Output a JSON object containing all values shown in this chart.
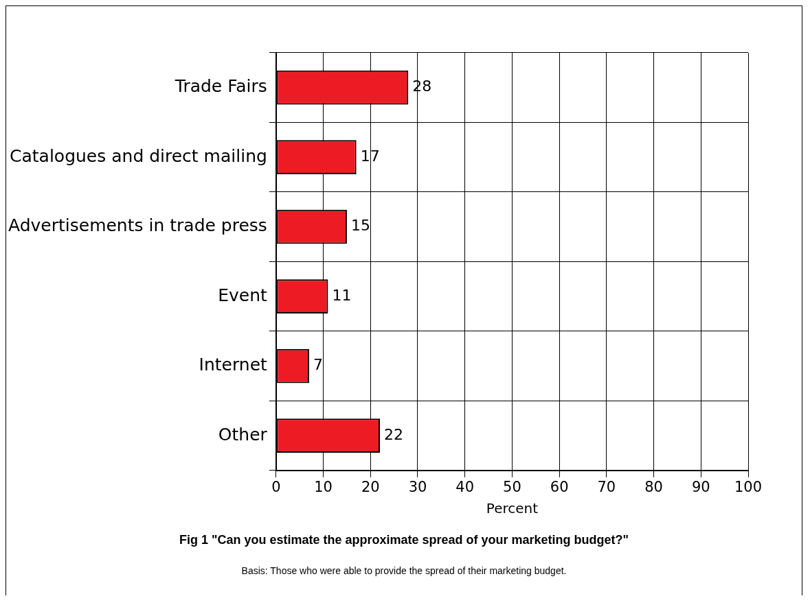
{
  "chart_data": {
    "type": "bar",
    "orientation": "horizontal",
    "title": "Fig 1 \"Can you estimate the approximate spread of your marketing budget?\"",
    "categories": [
      "Trade Fairs",
      "Catalogues and direct mailing",
      "Advertisements in trade press",
      "Event",
      "Internet",
      "Other"
    ],
    "values": [
      28,
      17,
      15,
      11,
      7,
      22
    ],
    "color": "#ed1c24",
    "xlabel": "Percent",
    "xlim": [
      0,
      100
    ],
    "xticks": [
      0,
      10,
      20,
      30,
      40,
      50,
      60,
      70,
      80,
      90,
      100
    ],
    "grid": true,
    "data_labels": true,
    "legend": false,
    "annotations": [
      "Basis: Those who were able to provide the spread of their marketing budget."
    ]
  }
}
